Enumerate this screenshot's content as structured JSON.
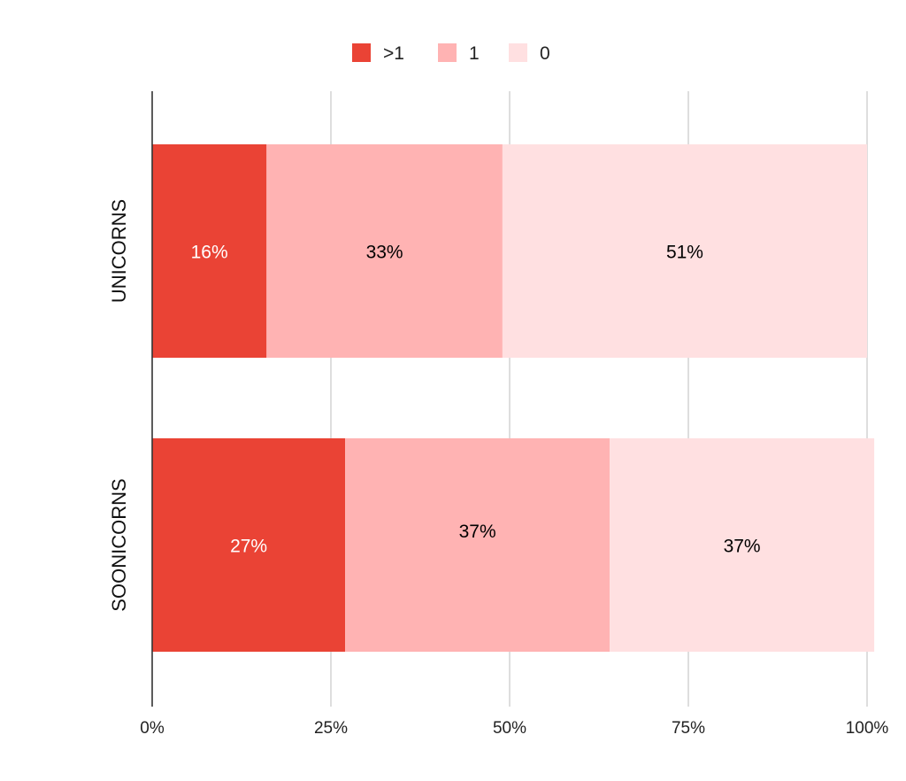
{
  "chart_data": {
    "type": "bar",
    "orientation": "horizontal",
    "stacked": "percent",
    "categories": [
      "UNICORNS",
      "SOONICORNS"
    ],
    "series": [
      {
        "name": ">1",
        "values": [
          16,
          27
        ],
        "labels": [
          "16%",
          "27%"
        ],
        "color": "#EA4335"
      },
      {
        "name": "1",
        "values": [
          33,
          37
        ],
        "labels": [
          "33%",
          "37%"
        ],
        "color": "#FFB3B3"
      },
      {
        "name": "0",
        "values": [
          51,
          37
        ],
        "labels": [
          "51%",
          "37%"
        ],
        "color": "#FFE0E1"
      }
    ],
    "xlim": [
      0,
      100
    ],
    "xticks": [
      "0%",
      "25%",
      "50%",
      "75%",
      "100%"
    ],
    "title": "",
    "xlabel": "",
    "ylabel": "",
    "grid": true,
    "legend": "top-center",
    "label_colors": [
      "#ffffff",
      "#000000",
      "#000000"
    ]
  }
}
